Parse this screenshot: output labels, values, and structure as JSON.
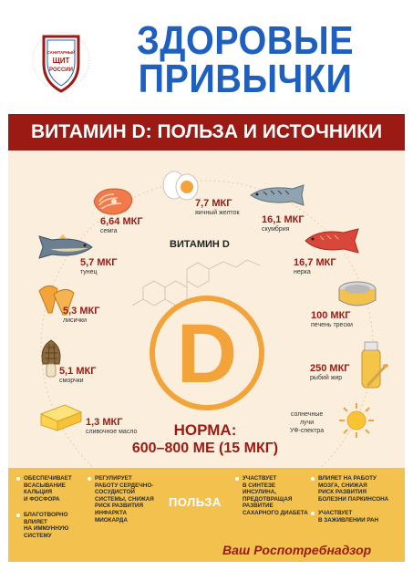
{
  "header": {
    "logo": {
      "line1": "САНИТАРНЫЙ",
      "line2": "ЩИТ",
      "line3": "РОССИИ"
    },
    "title_line1": "ЗДОРОВЫЕ",
    "title_line2": "ПРИВЫЧКИ"
  },
  "banner": {
    "text": "ВИТАМИН D: ПОЛЬЗА И ИСТОЧНИКИ"
  },
  "center": {
    "vitamin_label": "ВИТАМИН D",
    "letter": "D"
  },
  "sources": [
    {
      "value": "6,64 МКГ",
      "name": "семга",
      "icon": "salmon-steak-icon"
    },
    {
      "value": "7,7 МКГ",
      "name": "яичный желток",
      "icon": "egg-icon"
    },
    {
      "value": "16,1 МКГ",
      "name": "скумбрия",
      "icon": "mackerel-icon"
    },
    {
      "value": "5,7 МКГ",
      "name": "тунец",
      "icon": "tuna-icon"
    },
    {
      "value": "16,7 МКГ",
      "name": "нерка",
      "icon": "red-salmon-icon"
    },
    {
      "value": "5,3 МКГ",
      "name": "лисички",
      "icon": "chanterelle-icon"
    },
    {
      "value": "100 МКГ",
      "name": "печень трески",
      "icon": "cod-liver-can-icon"
    },
    {
      "value": "5,1 МКГ",
      "name": "сморчки",
      "icon": "morel-icon"
    },
    {
      "value": "250 МКГ",
      "name": "рыбий жир",
      "icon": "fish-oil-icon"
    },
    {
      "value": "1,3 МКГ",
      "name": "сливочное масло",
      "icon": "butter-icon"
    },
    {
      "value": "",
      "name": "солнечные лучи УФ-спектра",
      "icon": "sun-icon"
    }
  ],
  "sun_text": {
    "line1": "солнечные",
    "line2": "лучи",
    "line3": "УФ-спектра"
  },
  "norma": {
    "title": "НОРМА:",
    "value": "600–800 МЕ (15 МКГ)"
  },
  "benefits": {
    "title": "ПОЛЬЗА",
    "col1": [
      {
        "lines": [
          "ОБЕСПЕЧИВАЕТ",
          "ВСАСЫВАНИЕ",
          "КАЛЬЦИЯ",
          "И ФОСФОРА"
        ]
      },
      {
        "lines": [
          "БЛАГОТВОРНО",
          "ВЛИЯЕТ",
          "НА ИММУННУЮ",
          "СИСТЕМУ"
        ]
      }
    ],
    "col2": [
      {
        "lines": [
          "РЕГУЛИРУЕТ",
          "РАБОТУ СЕРДЕЧНО-",
          "СОСУДИСТОЙ",
          "СИСТЕМЫ, СНИЖАЯ",
          "РИСК РАЗВИТИЯ",
          "ИНФАРКТА",
          "МИОКАРДА"
        ]
      }
    ],
    "col3": [
      {
        "lines": [
          "УЧАСТВУЕТ",
          "В СИНТЕЗЕ",
          "ИНСУЛИНА,",
          "ПРЕДОТВРАЩАЯ",
          "РАЗВИТИЕ",
          "САХАРНОГО ДИАБЕТА"
        ]
      }
    ],
    "col4": [
      {
        "lines": [
          "ВЛИЯЕТ НА РАБОТУ",
          "МОЗГА, СНИЖАЯ",
          "РИСК РАЗВИТИЯ",
          "БОЛЕЗНИ ПАРКИНСОНА"
        ]
      },
      {
        "lines": [
          "УЧАСТВУЕТ",
          "В ЗАЖИВЛЕНИИ РАН"
        ]
      }
    ]
  },
  "footer": {
    "signature": "Ваш Роспотребнадзор"
  },
  "colors": {
    "title_blue": "#1f5fbe",
    "banner_red": "#9b1b14",
    "panel_beige": "#fbeedd",
    "benefits_yellow": "#f2c14e",
    "d_orange": "#f2a43a"
  }
}
